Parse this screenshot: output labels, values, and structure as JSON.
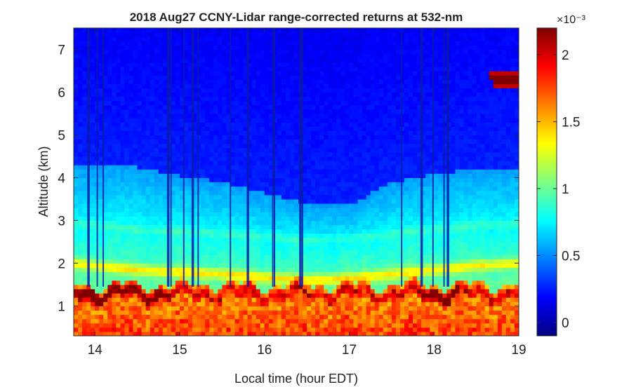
{
  "chart_data": {
    "type": "heatmap",
    "title": "2018 Aug27 CCNY-Lidar range-corrected returns at 532-nm",
    "xlabel": "Local time (hour EDT)",
    "ylabel": "Altitude (km)",
    "xlim": [
      13.75,
      19.0
    ],
    "ylim": [
      0.3,
      7.5
    ],
    "x_ticks": [
      14,
      15,
      16,
      17,
      18,
      19
    ],
    "y_ticks": [
      1,
      2,
      3,
      4,
      5,
      6,
      7
    ],
    "colorbar": {
      "colormap": "jet",
      "range": [
        -0.0001,
        0.0022
      ],
      "ticks": [
        0,
        0.5,
        1,
        1.5,
        2
      ],
      "exponent_label": "×10⁻³"
    },
    "features": {
      "boundary_layer_top_km": 1.5,
      "residual_layer_top_km": [
        [
          13.75,
          4.3
        ],
        [
          14.5,
          4.25
        ],
        [
          15.0,
          4.05
        ],
        [
          15.5,
          3.9
        ],
        [
          16.0,
          3.65
        ],
        [
          16.5,
          3.4
        ],
        [
          17.0,
          3.35
        ],
        [
          17.5,
          3.9
        ],
        [
          18.0,
          4.1
        ],
        [
          18.5,
          4.2
        ],
        [
          19.0,
          4.25
        ]
      ],
      "aerosol_layer_near_2km": [
        [
          13.75,
          2.0
        ],
        [
          14.5,
          1.85
        ],
        [
          15.5,
          1.75
        ],
        [
          16.5,
          1.6
        ],
        [
          17.0,
          1.65
        ],
        [
          17.5,
          1.75
        ],
        [
          18.5,
          1.95
        ],
        [
          19.0,
          2.0
        ]
      ],
      "precipitation_streaks_hours": [
        13.92,
        14.03,
        14.1,
        14.86,
        14.9,
        15.05,
        15.15,
        15.22,
        15.6,
        15.8,
        16.1,
        16.12,
        16.42,
        16.45,
        17.62,
        17.85,
        17.99,
        18.12,
        18.16
      ],
      "high_cloud": {
        "x_range": [
          18.6,
          19.0
        ],
        "altitude_km": [
          6.1,
          6.5
        ]
      }
    }
  }
}
